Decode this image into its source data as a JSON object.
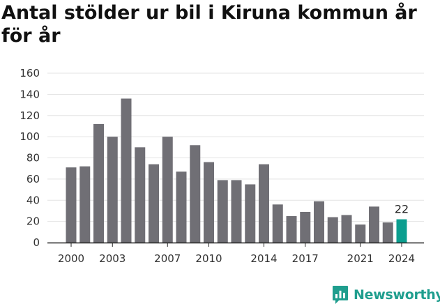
{
  "title": "Antal stölder ur bil i Kiruna kommun år för år",
  "brand": {
    "name": "Newsworthy",
    "logo_icon": "newsworthy-chart-bubble-icon",
    "color": "#1f9e8e"
  },
  "colors": {
    "bar": "#706f75",
    "highlight": "#0b9e8f",
    "grid": "#e3e3e3",
    "axis": "#222222"
  },
  "chart_data": {
    "type": "bar",
    "title": "Antal stölder ur bil i Kiruna kommun år för år",
    "xlabel": "",
    "ylabel": "",
    "categories": [
      "2000",
      "2001",
      "2002",
      "2003",
      "2004",
      "2005",
      "2006",
      "2007",
      "2008",
      "2009",
      "2010",
      "2011",
      "2012",
      "2013",
      "2014",
      "2015",
      "2016",
      "2017",
      "2018",
      "2019",
      "2020",
      "2021",
      "2022",
      "2023",
      "2024"
    ],
    "values": [
      71,
      72,
      112,
      100,
      136,
      90,
      74,
      100,
      67,
      92,
      76,
      59,
      59,
      55,
      74,
      36,
      25,
      29,
      39,
      24,
      26,
      17,
      34,
      19,
      22
    ],
    "highlight_index": 24,
    "ylim": [
      0,
      160
    ],
    "yticks": [
      0,
      20,
      40,
      60,
      80,
      100,
      120,
      140,
      160
    ],
    "xtick_labels": [
      "2000",
      "2003",
      "2007",
      "2010",
      "2014",
      "2017",
      "2021",
      "2024"
    ],
    "data_labels": [
      {
        "category": "2024",
        "text": "22"
      }
    ],
    "grid": "horizontal",
    "legend": "none"
  }
}
